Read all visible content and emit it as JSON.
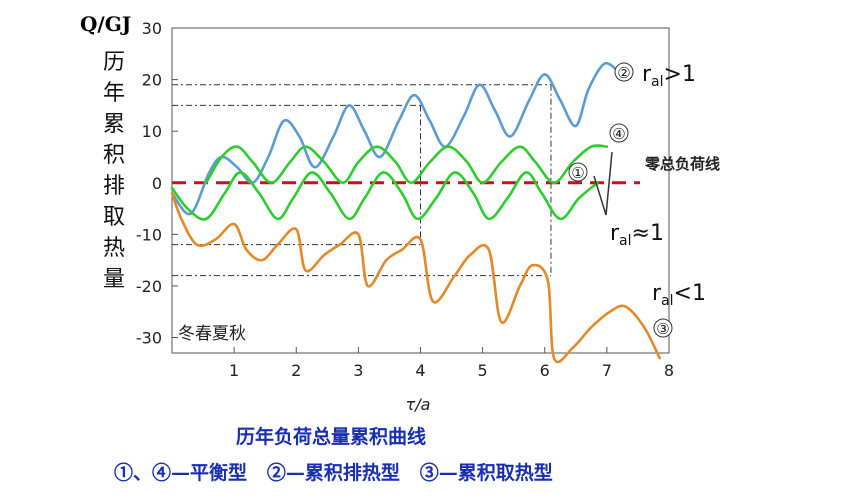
{
  "chart_data": {
    "type": "line",
    "ylabel_unit": "Q/GJ",
    "ylabel": "历年累积排取热量",
    "xlabel": "τ/a",
    "xlim": [
      0,
      8
    ],
    "ylim": [
      -33,
      30
    ],
    "x_ticks": [
      1,
      2,
      3,
      4,
      5,
      6,
      7,
      8
    ],
    "y_ticks": [
      30,
      20,
      10,
      0,
      -10,
      -20,
      -30
    ],
    "season_label": "冬春夏秋",
    "zero_line_label": "零总负荷线",
    "series": [
      {
        "name": "②",
        "label": "r_al>1",
        "color": "#5b9bd5",
        "x": [
          0,
          0.3,
          0.6,
          0.8,
          1.05,
          1.3,
          1.55,
          1.8,
          2.05,
          2.3,
          2.6,
          2.85,
          3.1,
          3.35,
          3.65,
          3.9,
          4.15,
          4.4,
          4.7,
          4.95,
          5.2,
          5.45,
          5.75,
          6.0,
          6.25,
          6.5,
          6.7,
          6.95,
          7.15
        ],
        "y": [
          -2,
          -6,
          2,
          5,
          3,
          0,
          5,
          12,
          9,
          3,
          9,
          15,
          10,
          5,
          12,
          17,
          12,
          7,
          13,
          19,
          14,
          9,
          16,
          21,
          16,
          11,
          18,
          23,
          22
        ]
      },
      {
        "name": "①",
        "label": "r_al≈1",
        "color": "#2ecc2e",
        "x": [
          0,
          0.25,
          0.55,
          0.85,
          1.1,
          1.4,
          1.7,
          1.95,
          2.25,
          2.55,
          2.85,
          3.1,
          3.4,
          3.7,
          3.95,
          4.25,
          4.55,
          4.85,
          5.1,
          5.4,
          5.7,
          5.95,
          6.25,
          6.55,
          6.85
        ],
        "y": [
          -1,
          -5,
          -7,
          -2,
          2,
          -2,
          -7,
          -3,
          2,
          -2,
          -7,
          -3,
          2,
          -2,
          -7,
          -3,
          2,
          -2,
          -7,
          -3,
          2,
          -2,
          -7,
          -3,
          0
        ]
      },
      {
        "name": "④",
        "label": "r_al≈1",
        "color": "#2ecc2e",
        "x": [
          0.55,
          0.8,
          1.05,
          1.3,
          1.6,
          1.9,
          2.15,
          2.45,
          2.75,
          3.0,
          3.3,
          3.6,
          3.85,
          4.15,
          4.45,
          4.75,
          5.0,
          5.3,
          5.6,
          5.85,
          6.15,
          6.45,
          6.75,
          7.0
        ],
        "y": [
          0,
          5,
          7,
          4,
          0,
          4,
          7,
          4,
          0,
          4,
          7,
          4,
          0,
          4,
          7,
          4,
          0,
          4,
          7,
          4,
          0,
          4,
          7,
          7
        ]
      },
      {
        "name": "③",
        "label": "r_al<1",
        "color": "#e08a2a",
        "x": [
          0,
          0.15,
          0.4,
          0.7,
          1.0,
          1.2,
          1.45,
          1.7,
          2.0,
          2.15,
          2.45,
          2.7,
          3.0,
          3.15,
          3.45,
          3.7,
          4.0,
          4.2,
          4.55,
          4.8,
          5.1,
          5.3,
          5.6,
          5.8,
          6.05,
          6.15,
          6.45,
          6.75,
          7.05,
          7.3,
          7.6,
          7.85
        ],
        "y": [
          -2,
          -7,
          -12,
          -11,
          -8,
          -13,
          -15,
          -12,
          -9,
          -17,
          -14,
          -12,
          -10,
          -20,
          -15,
          -13,
          -11,
          -23,
          -18,
          -14,
          -13,
          -27,
          -20,
          -16,
          -19,
          -34,
          -32,
          -28,
          -25,
          -24,
          -28,
          -34
        ]
      }
    ],
    "reference_lines": [
      {
        "value": 19
      },
      {
        "value": 15
      },
      {
        "value": -12
      },
      {
        "value": -18
      }
    ],
    "reference_verticals": [
      4,
      6.1
    ]
  },
  "caption": "历年负荷总量累积曲线",
  "legend": {
    "item1": "①、④—平衡型",
    "item2": "②—累积排热型",
    "item3": "③—累积取热型"
  },
  "curve_labels": {
    "c2": "②",
    "c4": "④",
    "c1": "①",
    "c3": "③",
    "r_gt": ">1",
    "r_approx": "≈1",
    "r_lt": "<1",
    "r": "r",
    "al": "al"
  }
}
